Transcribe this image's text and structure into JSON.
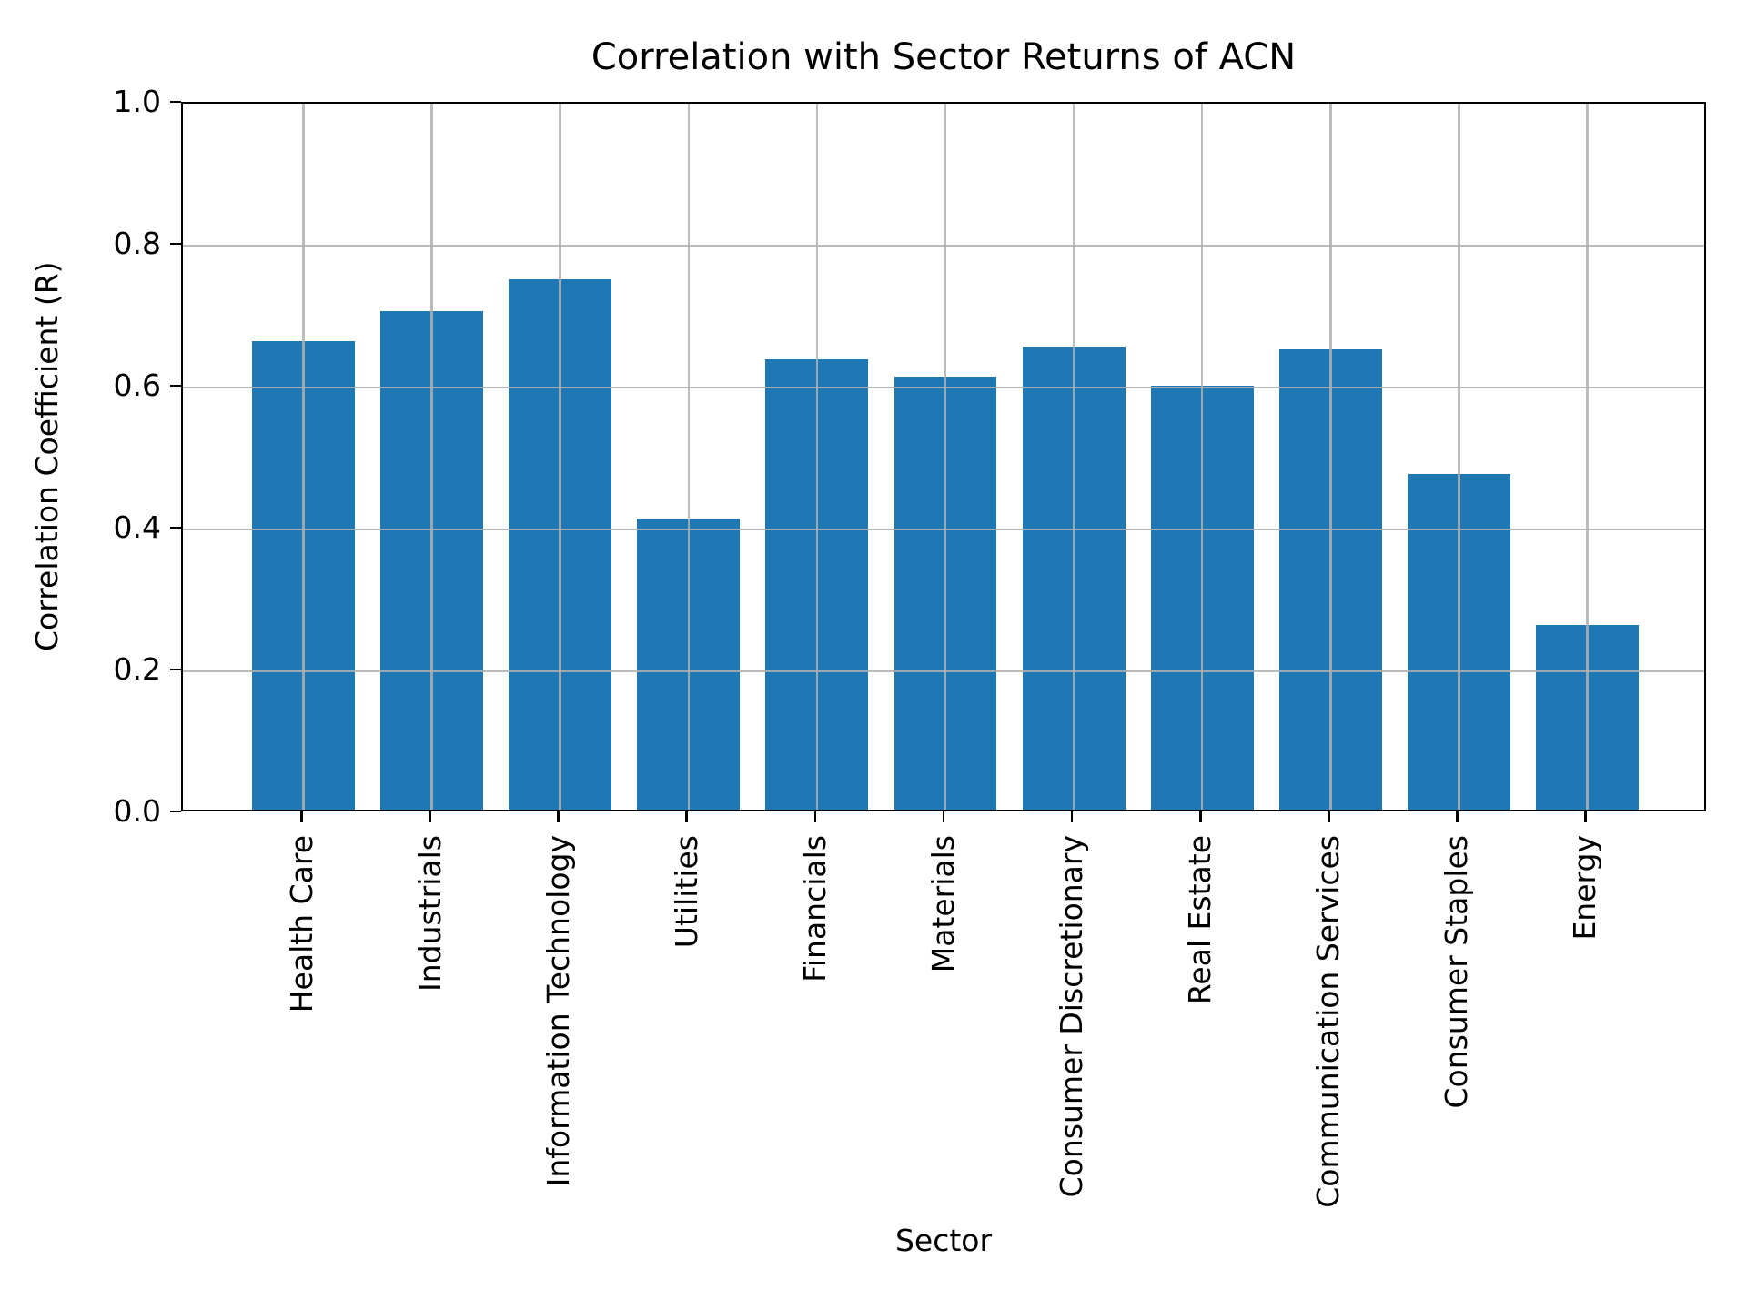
{
  "chart_data": {
    "type": "bar",
    "title": "Correlation with Sector Returns of ACN",
    "xlabel": "Sector",
    "ylabel": "Correlation Coefficient (R)",
    "categories": [
      "Health Care",
      "Industrials",
      "Information Technology",
      "Utilities",
      "Financials",
      "Materials",
      "Consumer Discretionary",
      "Real Estate",
      "Communication Services",
      "Consumer Staples",
      "Energy"
    ],
    "values": [
      0.66,
      0.703,
      0.747,
      0.41,
      0.635,
      0.61,
      0.652,
      0.597,
      0.649,
      0.473,
      0.26
    ],
    "ylim": [
      0.0,
      1.0
    ],
    "yticks": [
      {
        "value": 1.0,
        "label": "1.0"
      },
      {
        "value": 0.8,
        "label": "0.8"
      },
      {
        "value": 0.6,
        "label": "0.6"
      },
      {
        "value": 0.4,
        "label": "0.4"
      },
      {
        "value": 0.2,
        "label": "0.2"
      },
      {
        "value": 0.0,
        "label": "0.0"
      }
    ],
    "grid": true,
    "legend": "none",
    "x_tick_rotation_deg": 90,
    "colors": {
      "bar": "#1f77b4",
      "gridline": "#b0b0b0",
      "spine": "#000000",
      "text": "#000000",
      "background": "#ffffff"
    }
  }
}
